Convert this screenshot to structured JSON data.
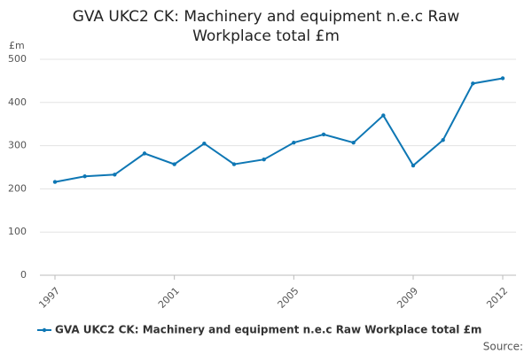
{
  "chart_data": {
    "type": "line",
    "title": "GVA UKC2 CK: Machinery and equipment n.e.c Raw Workplace total £m",
    "y_unit": "£m",
    "source": "Source:",
    "x": [
      1997,
      1998,
      1999,
      2000,
      2001,
      2002,
      2003,
      2004,
      2005,
      2006,
      2007,
      2008,
      2009,
      2010,
      2011,
      2012
    ],
    "series": [
      {
        "name": "GVA UKC2 CK: Machinery and equipment n.e.c Raw Workplace total £m",
        "color": "#0e77b4",
        "values": [
          216,
          229,
          233,
          282,
          257,
          305,
          257,
          268,
          307,
          326,
          307,
          370,
          254,
          313,
          444,
          456
        ]
      }
    ],
    "xlim": [
      1997,
      2012
    ],
    "xticks": [
      1997,
      2001,
      2005,
      2009,
      2012
    ],
    "ylim": [
      0,
      500
    ],
    "yticks": [
      0,
      100,
      200,
      300,
      400,
      500
    ],
    "grid": true
  }
}
